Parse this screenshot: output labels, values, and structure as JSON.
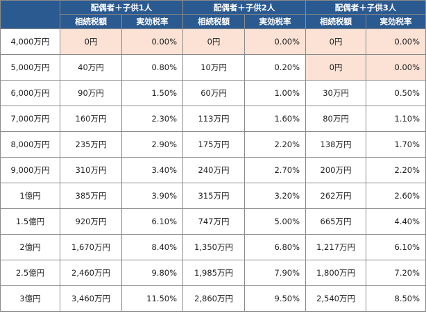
{
  "table": {
    "groups": [
      "配偶者＋子供1人",
      "配偶者＋子供2人",
      "配偶者＋子供3人"
    ],
    "subheaders": [
      "相続税額",
      "実効税率"
    ],
    "rows": [
      {
        "estate": "4,000万円",
        "cells": [
          {
            "tax": "0円",
            "rate": "0.00%",
            "zero": true
          },
          {
            "tax": "0円",
            "rate": "0.00%",
            "zero": true
          },
          {
            "tax": "0円",
            "rate": "0.00%",
            "zero": true
          }
        ]
      },
      {
        "estate": "5,000万円",
        "cells": [
          {
            "tax": "40万円",
            "rate": "0.80%",
            "zero": false
          },
          {
            "tax": "10万円",
            "rate": "0.20%",
            "zero": false
          },
          {
            "tax": "0円",
            "rate": "0.00%",
            "zero": true
          }
        ]
      },
      {
        "estate": "6,000万円",
        "cells": [
          {
            "tax": "90万円",
            "rate": "1.50%",
            "zero": false
          },
          {
            "tax": "60万円",
            "rate": "1.00%",
            "zero": false
          },
          {
            "tax": "30万円",
            "rate": "0.50%",
            "zero": false
          }
        ]
      },
      {
        "estate": "7,000万円",
        "cells": [
          {
            "tax": "160万円",
            "rate": "2.30%",
            "zero": false
          },
          {
            "tax": "113万円",
            "rate": "1.60%",
            "zero": false
          },
          {
            "tax": "80万円",
            "rate": "1.10%",
            "zero": false
          }
        ]
      },
      {
        "estate": "8,000万円",
        "cells": [
          {
            "tax": "235万円",
            "rate": "2.90%",
            "zero": false
          },
          {
            "tax": "175万円",
            "rate": "2.20%",
            "zero": false
          },
          {
            "tax": "138万円",
            "rate": "1.70%",
            "zero": false
          }
        ]
      },
      {
        "estate": "9,000万円",
        "cells": [
          {
            "tax": "310万円",
            "rate": "3.40%",
            "zero": false
          },
          {
            "tax": "240万円",
            "rate": "2.70%",
            "zero": false
          },
          {
            "tax": "200万円",
            "rate": "2.20%",
            "zero": false
          }
        ]
      },
      {
        "estate": "1億円",
        "cells": [
          {
            "tax": "385万円",
            "rate": "3.90%",
            "zero": false
          },
          {
            "tax": "315万円",
            "rate": "3.20%",
            "zero": false
          },
          {
            "tax": "262万円",
            "rate": "2.60%",
            "zero": false
          }
        ]
      },
      {
        "estate": "1.5億円",
        "cells": [
          {
            "tax": "920万円",
            "rate": "6.10%",
            "zero": false
          },
          {
            "tax": "747万円",
            "rate": "5.00%",
            "zero": false
          },
          {
            "tax": "665万円",
            "rate": "4.40%",
            "zero": false
          }
        ]
      },
      {
        "estate": "2億円",
        "cells": [
          {
            "tax": "1,670万円",
            "rate": "8.40%",
            "zero": false
          },
          {
            "tax": "1,350万円",
            "rate": "6.80%",
            "zero": false
          },
          {
            "tax": "1,217万円",
            "rate": "6.10%",
            "zero": false
          }
        ]
      },
      {
        "estate": "2.5億円",
        "cells": [
          {
            "tax": "2,460万円",
            "rate": "9.80%",
            "zero": false
          },
          {
            "tax": "1,985万円",
            "rate": "7.90%",
            "zero": false
          },
          {
            "tax": "1,800万円",
            "rate": "7.20%",
            "zero": false
          }
        ]
      },
      {
        "estate": "3億円",
        "cells": [
          {
            "tax": "3,460万円",
            "rate": "11.50%",
            "zero": false
          },
          {
            "tax": "2,860万円",
            "rate": "9.50%",
            "zero": false
          },
          {
            "tax": "2,540万円",
            "rate": "8.50%",
            "zero": false
          }
        ]
      }
    ]
  },
  "colors": {
    "header_bg": "#2b5a91",
    "header_text": "#ffffff",
    "zero_highlight": "#fbe2d5",
    "border": "#8a8a8a"
  }
}
